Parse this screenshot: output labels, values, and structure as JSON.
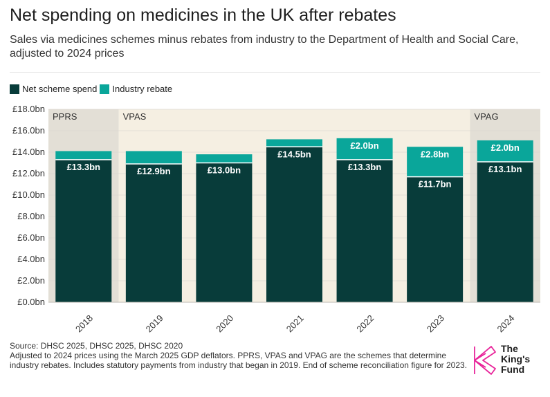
{
  "title": "Net spending on medicines in the UK after rebates",
  "subtitle": "Sales via medicines schemes minus rebates from industry to the Department of Health and Social Care, adjusted to 2024 prices",
  "colors": {
    "net": "#083c3a",
    "rebate": "#0aa69a",
    "band": "#f5efe2",
    "band_dark": "#e3dfd6",
    "logo_pink": "#e8249a"
  },
  "legend": [
    {
      "label": "Net scheme spend",
      "color": "#083c3a"
    },
    {
      "label": "Industry rebate",
      "color": "#0aa69a"
    }
  ],
  "chart_data": {
    "type": "bar",
    "stacked": true,
    "categories": [
      "2018",
      "2019",
      "2020",
      "2021",
      "2022",
      "2023",
      "2024"
    ],
    "series": [
      {
        "name": "Net scheme spend",
        "values": [
          13.3,
          12.9,
          13.0,
          14.5,
          13.3,
          11.7,
          13.1
        ],
        "labels": [
          "£13.3bn",
          "£12.9bn",
          "£13.0bn",
          "£14.5bn",
          "£13.3bn",
          "£11.7bn",
          "£13.1bn"
        ]
      },
      {
        "name": "Industry rebate",
        "values": [
          0.8,
          1.2,
          0.8,
          0.7,
          2.0,
          2.8,
          2.0
        ],
        "labels": [
          "",
          "",
          "",
          "",
          "£2.0bn",
          "£2.8bn",
          "£2.0bn"
        ]
      }
    ],
    "ylim": [
      0,
      18
    ],
    "yticks": [
      0,
      2,
      4,
      6,
      8,
      10,
      12,
      14,
      16,
      18
    ],
    "ytick_labels": [
      "£0.0bn",
      "£2.0bn",
      "£4.0bn",
      "£6.0bn",
      "£8.0bn",
      "£10.0bn",
      "£12.0bn",
      "£14.0bn",
      "£16.0bn",
      "£18.0bn"
    ],
    "scheme_periods": [
      {
        "label": "PPRS",
        "start": 0,
        "end": 0,
        "shade": "dark"
      },
      {
        "label": "VPAS",
        "start": 1,
        "end": 5,
        "shade": "light"
      },
      {
        "label": "VPAG",
        "start": 6,
        "end": 6,
        "shade": "dark"
      }
    ]
  },
  "footer": {
    "source": "Source: DHSC 2025, DHSC 2025, DHSC 2020",
    "note": "Adjusted to 2024 prices using the March 2025 GDP deflators. PPRS, VPAS and VPAG are the schemes that determine industry rebates. Includes statutory payments from industry that began in 2019. End of scheme reconciliation figure for 2023."
  },
  "logo": {
    "line1": "The",
    "line2": "King's",
    "line3": "Fund"
  }
}
